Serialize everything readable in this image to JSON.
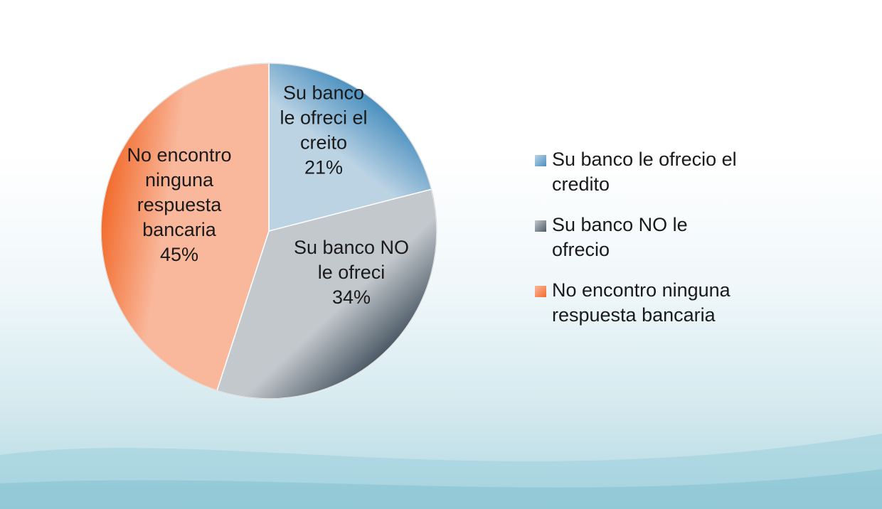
{
  "chart_data": {
    "type": "pie",
    "slices": [
      {
        "legend_lines": [
          "Su banco le ofrecio el",
          "credito"
        ],
        "label_lines": [
          "Su banco",
          "le ofreci el",
          "creito"
        ],
        "value": 21,
        "value_label": "21%",
        "color": "#4a90bf",
        "light_color": "#bcd3e4"
      },
      {
        "legend_lines": [
          "Su banco NO le",
          "ofrecio"
        ],
        "label_lines": [
          "Su banco NO",
          "le ofreci"
        ],
        "value": 34,
        "value_label": "34%",
        "color": "#4c5a66",
        "light_color": "#c3c8cd"
      },
      {
        "legend_lines": [
          "No encontro ninguna",
          "respuesta bancaria"
        ],
        "label_lines": [
          "No encontro",
          "ninguna",
          "respuesta",
          "bancaria"
        ],
        "value": 45,
        "value_label": "45%",
        "color": "#f26b2c",
        "light_color": "#f9b89c"
      }
    ],
    "legend_position": "right"
  }
}
